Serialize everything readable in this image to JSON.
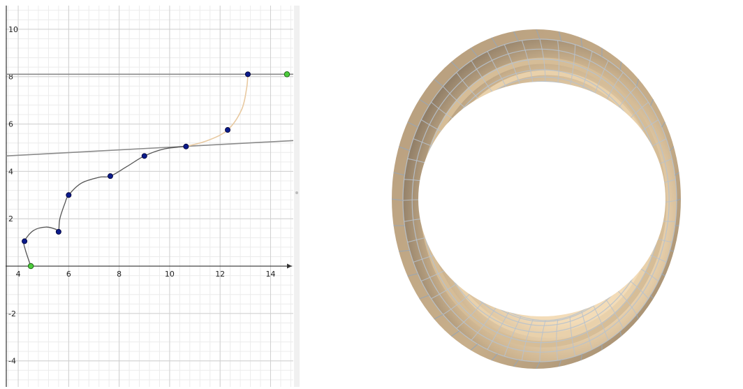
{
  "chart_data": {
    "type": "line",
    "title": "",
    "xlabel": "",
    "ylabel": "",
    "xlim": [
      3.5,
      14.9
    ],
    "ylim": [
      -5.1,
      11.0
    ],
    "grid": true,
    "x_ticks": [
      "4",
      "6",
      "8",
      "10",
      "12",
      "14"
    ],
    "y_ticks": [
      "-4",
      "-2",
      "2",
      "4",
      "6",
      "8",
      "10"
    ],
    "horizontal_line": {
      "y": 8.1,
      "color": "#8a8a8a"
    },
    "tangent_line": {
      "from": [
        3.5,
        4.65
      ],
      "to": [
        14.9,
        5.3
      ],
      "color": "#8a8a8a"
    },
    "curve_dark": {
      "color": "#555555",
      "points": [
        [
          4.5,
          0
        ],
        [
          4.28,
          0.7
        ],
        [
          4.25,
          1.05
        ],
        [
          4.6,
          1.5
        ],
        [
          5.1,
          1.65
        ],
        [
          5.5,
          1.55
        ],
        [
          5.6,
          1.45
        ],
        [
          5.65,
          2.0
        ],
        [
          5.85,
          2.65
        ],
        [
          6.0,
          3.0
        ],
        [
          6.5,
          3.5
        ],
        [
          7.2,
          3.75
        ],
        [
          7.65,
          3.8
        ],
        [
          8.3,
          4.2
        ],
        [
          9.0,
          4.65
        ],
        [
          9.8,
          4.95
        ],
        [
          10.65,
          5.05
        ]
      ]
    },
    "curve_light": {
      "color": "#e8c9a0",
      "points": [
        [
          10.65,
          5.05
        ],
        [
          11.5,
          5.3
        ],
        [
          12.3,
          5.75
        ],
        [
          12.85,
          6.6
        ],
        [
          13.05,
          7.5
        ],
        [
          13.1,
          8.1
        ]
      ]
    },
    "control_points": [
      [
        4.25,
        1.05
      ],
      [
        5.6,
        1.45
      ],
      [
        6.0,
        3.0
      ],
      [
        7.65,
        3.8
      ],
      [
        9.0,
        4.65
      ],
      [
        10.65,
        5.05
      ],
      [
        12.3,
        5.75
      ],
      [
        13.1,
        8.1
      ]
    ],
    "endpoints": [
      [
        4.5,
        0
      ],
      [
        14.65,
        8.1
      ]
    ],
    "control_point_color": "#0b1b8a",
    "endpoint_color": "#4ccc3c"
  },
  "render": {
    "surface_color": "#c9b08c",
    "surface_highlight": "#f3dcb8",
    "surface_shadow": "#8c7a64",
    "mesh_color": "#b8c2cc"
  }
}
